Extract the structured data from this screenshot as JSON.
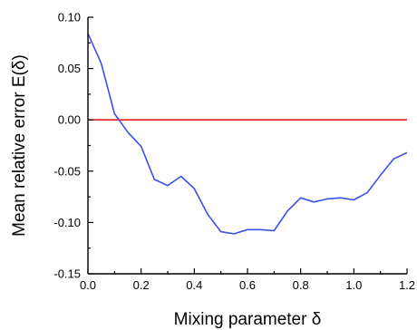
{
  "chart_data": {
    "type": "line",
    "title": "",
    "xlabel": "Mixing parameter δ",
    "ylabel": "Mean relative error E(δ)",
    "xlim": [
      0.0,
      1.2
    ],
    "ylim": [
      -0.15,
      0.1
    ],
    "xticks": [
      0.0,
      0.2,
      0.4,
      0.6,
      0.8,
      1.0,
      1.2
    ],
    "xtick_labels": [
      "0.0",
      "0.2",
      "0.4",
      "0.6",
      "0.8",
      "1.0",
      "1.2"
    ],
    "yticks": [
      0.1,
      0.05,
      0.0,
      -0.05,
      -0.1,
      -0.15
    ],
    "ytick_labels": [
      "0.10",
      "0.05",
      "0.00",
      "-0.05",
      "-0.10",
      "-0.15"
    ],
    "grid": false,
    "series": [
      {
        "color": "#3b4ff0",
        "x": [
          0.0,
          0.05,
          0.1,
          0.15,
          0.2,
          0.25,
          0.3,
          0.35,
          0.4,
          0.45,
          0.5,
          0.55,
          0.6,
          0.65,
          0.7,
          0.75,
          0.8,
          0.85,
          0.9,
          0.95,
          1.0,
          1.05,
          1.1,
          1.15,
          1.2
        ],
        "y": [
          0.084,
          0.055,
          0.006,
          -0.012,
          -0.026,
          -0.058,
          -0.064,
          -0.055,
          -0.067,
          -0.092,
          -0.109,
          -0.111,
          -0.107,
          -0.107,
          -0.108,
          -0.089,
          -0.076,
          -0.08,
          -0.077,
          -0.076,
          -0.078,
          -0.071,
          -0.054,
          -0.038,
          -0.032
        ]
      }
    ],
    "reference_line": {
      "y": 0.0,
      "color": "#e81c1c"
    }
  }
}
